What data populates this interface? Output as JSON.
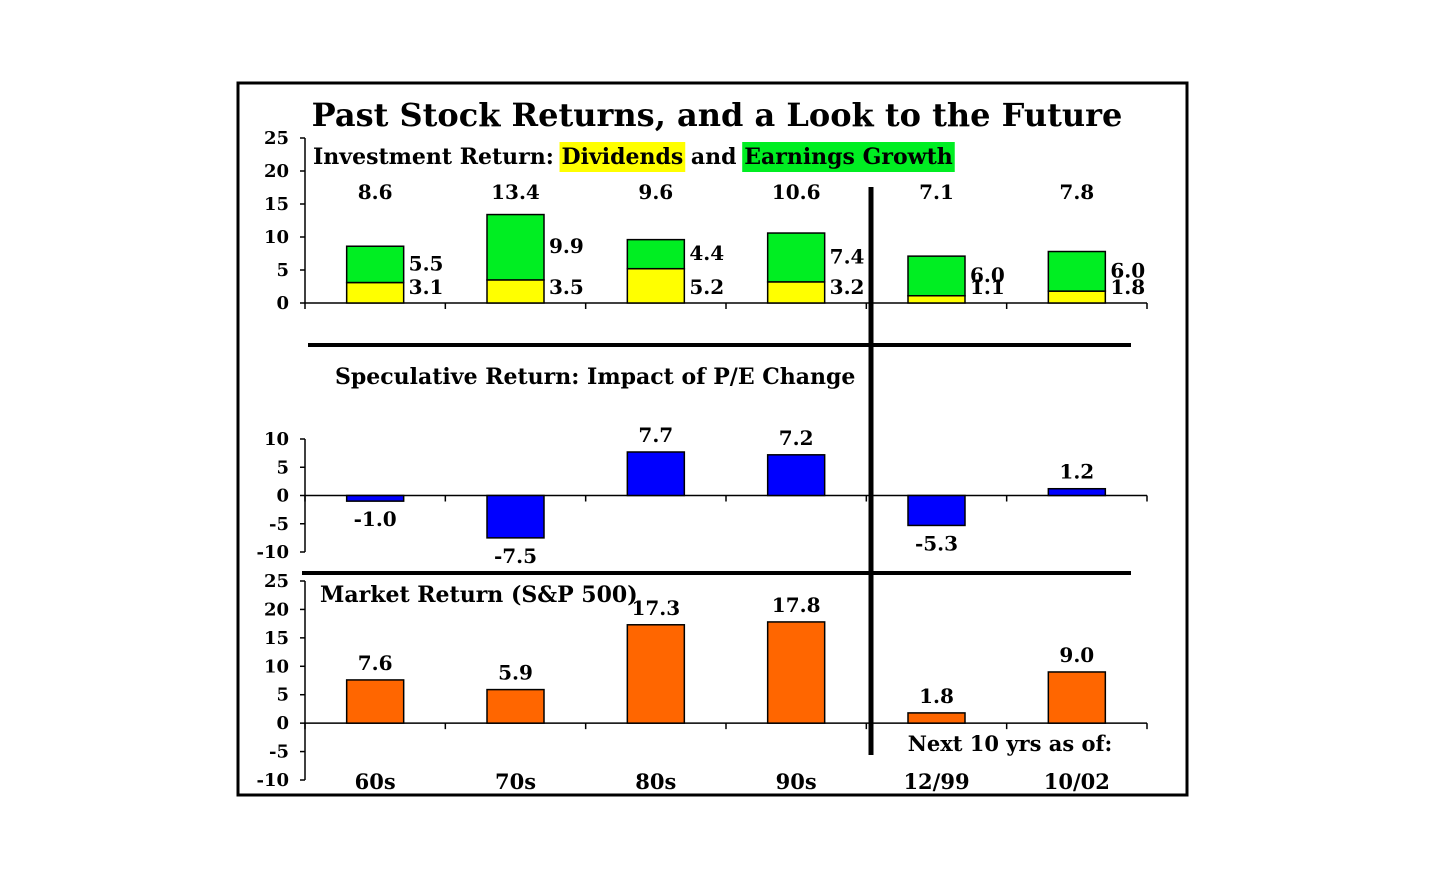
{
  "chart_data": {
    "title": "Past Stock Returns, and a Look to the Future",
    "categories": [
      "60s",
      "70s",
      "80s",
      "90s",
      "12/99",
      "10/02"
    ],
    "future_note": "Next 10 yrs as of:",
    "panels": [
      {
        "id": "investment",
        "type": "bar",
        "stacked": true,
        "title_parts": [
          {
            "text": "Investment Return: ",
            "highlight": ""
          },
          {
            "text": "Dividends",
            "highlight": "#ffff00"
          },
          {
            "text": " and ",
            "highlight": ""
          },
          {
            "text": "Earnings Growth",
            "highlight": "#00ee22"
          }
        ],
        "ylim": [
          0,
          25
        ],
        "yticks": [
          "0",
          "5",
          "10",
          "15",
          "20",
          "25"
        ],
        "totals": [
          "8.6",
          "13.4",
          "9.6",
          "10.6",
          "7.1",
          "7.8"
        ],
        "series": [
          {
            "name": "Dividends",
            "color": "#ffff00",
            "values": [
              3.1,
              3.5,
              5.2,
              3.2,
              1.1,
              1.8
            ],
            "labels": [
              "3.1",
              "3.5",
              "5.2",
              "3.2",
              "1.1",
              "1.8"
            ]
          },
          {
            "name": "Earnings Growth",
            "color": "#00ee22",
            "values": [
              5.5,
              9.9,
              4.4,
              7.4,
              6.0,
              6.0
            ],
            "labels": [
              "5.5",
              "9.9",
              "4.4",
              "7.4",
              "6.0",
              "6.0"
            ]
          }
        ]
      },
      {
        "id": "speculative",
        "type": "bar",
        "title": "Speculative Return: Impact of P/E Change",
        "ylim": [
          -10,
          10
        ],
        "yticks": [
          "-10",
          "-5",
          "0",
          "5",
          "10"
        ],
        "color": "#0000ff",
        "values": [
          -1.0,
          -7.5,
          7.7,
          7.2,
          -5.3,
          1.2
        ],
        "labels": [
          "-1.0",
          "-7.5",
          "7.7",
          "7.2",
          "-5.3",
          "1.2"
        ]
      },
      {
        "id": "market",
        "type": "bar",
        "title": "Market Return (S&P 500)",
        "ylim": [
          -10,
          25
        ],
        "yticks": [
          "-10",
          "-5",
          "0",
          "5",
          "10",
          "15",
          "20",
          "25"
        ],
        "color": "#ff6600",
        "values": [
          7.6,
          5.9,
          17.3,
          17.8,
          1.8,
          9.0
        ],
        "labels": [
          "7.6",
          "5.9",
          "17.3",
          "17.8",
          "1.8",
          "9.0"
        ]
      }
    ]
  }
}
